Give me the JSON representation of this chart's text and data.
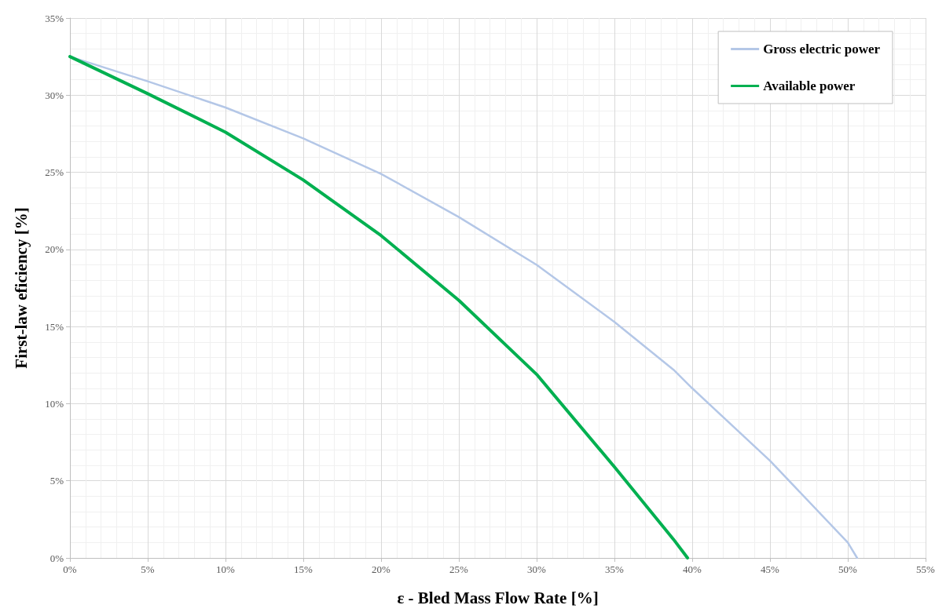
{
  "chart_data": {
    "type": "line",
    "xlabel": "ε - Bled Mass Flow Rate [%]",
    "ylabel": "First-law eficiency [%]",
    "xlim": [
      0,
      55
    ],
    "ylim": [
      0,
      35
    ],
    "xticks": [
      {
        "value": 0,
        "label": "0%"
      },
      {
        "value": 5,
        "label": "5%"
      },
      {
        "value": 10,
        "label": "10%"
      },
      {
        "value": 15,
        "label": "15%"
      },
      {
        "value": 20,
        "label": "20%"
      },
      {
        "value": 25,
        "label": "25%"
      },
      {
        "value": 30,
        "label": "30%"
      },
      {
        "value": 35,
        "label": "35%"
      },
      {
        "value": 40,
        "label": "40%"
      },
      {
        "value": 45,
        "label": "45%"
      },
      {
        "value": 50,
        "label": "50%"
      },
      {
        "value": 55,
        "label": "55%"
      }
    ],
    "yticks": [
      {
        "value": 0,
        "label": "0%"
      },
      {
        "value": 5,
        "label": "5%"
      },
      {
        "value": 10,
        "label": "10%"
      },
      {
        "value": 15,
        "label": "15%"
      },
      {
        "value": 20,
        "label": "20%"
      },
      {
        "value": 25,
        "label": "25%"
      },
      {
        "value": 30,
        "label": "30%"
      },
      {
        "value": 35,
        "label": "35%"
      }
    ],
    "grid": true,
    "legend": "top right",
    "marker": "none",
    "line_style": "solid",
    "series": [
      {
        "name": "Gross electric power",
        "color": "#b4c7e7",
        "x": [
          0,
          5,
          10,
          15,
          20,
          25,
          30,
          35,
          38.8,
          40,
          45,
          50,
          50.6
        ],
        "values": [
          32.5,
          30.9,
          29.2,
          27.2,
          24.9,
          22.1,
          19.0,
          15.3,
          12.2,
          11.0,
          6.3,
          1.0,
          0
        ]
      },
      {
        "name": "Available power",
        "color": "#00b050",
        "x": [
          0,
          5,
          10,
          15,
          20,
          25,
          30,
          35,
          38.8,
          39.7
        ],
        "values": [
          32.5,
          30.1,
          27.6,
          24.5,
          20.9,
          16.7,
          11.9,
          5.9,
          1.2,
          0
        ]
      }
    ]
  }
}
